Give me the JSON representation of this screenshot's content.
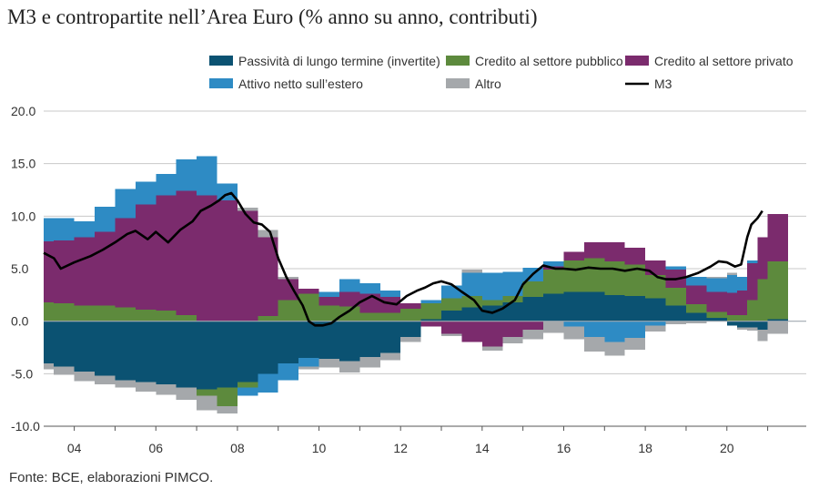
{
  "title": "M3 e contropartite nell’Area Euro (% anno su anno, contributi)",
  "source": "Fonte: BCE, elaborazioni PIMCO.",
  "chart_data": {
    "type": "area",
    "stacking": "stacked, positive and negative contributions stacked separately; M3 drawn as a line",
    "xlim": [
      2003.25,
      2021.5
    ],
    "ylim": [
      -10,
      20
    ],
    "yticks": [
      20,
      15,
      10,
      5,
      0,
      -5,
      -10
    ],
    "ytick_labels": [
      "20.0",
      "15.0",
      "10.0",
      "5.0",
      "0.0",
      "-5.0",
      "-10.0"
    ],
    "xticks": [
      2004,
      2006,
      2008,
      2010,
      2012,
      2014,
      2016,
      2018,
      2020
    ],
    "xtick_labels": [
      "04",
      "06",
      "08",
      "10",
      "12",
      "14",
      "16",
      "18",
      "20"
    ],
    "grid": "horizontal",
    "legend_position": "top-right",
    "x": [
      2003.25,
      2003.5,
      2004,
      2004.5,
      2005,
      2005.5,
      2006,
      2006.5,
      2007,
      2007.5,
      2008,
      2008.5,
      2009,
      2009.5,
      2010,
      2010.5,
      2011,
      2011.5,
      2012,
      2012.5,
      2013,
      2013.5,
      2014,
      2014.5,
      2015,
      2015.5,
      2016,
      2016.5,
      2017,
      2017.5,
      2018,
      2018.5,
      2019,
      2019.5,
      2020,
      2020.25,
      2020.5,
      2020.75,
      2021,
      2021.5
    ],
    "series": [
      {
        "name": "Passività di lungo termine (invertite)",
        "color": "#0b5272",
        "values": [
          -4.0,
          -4.3,
          -4.8,
          -5.2,
          -5.6,
          -5.8,
          -6.0,
          -6.3,
          -6.5,
          -6.3,
          -5.8,
          -5.0,
          -4.0,
          -3.5,
          -3.6,
          -3.8,
          -3.4,
          -3.0,
          -1.5,
          0.2,
          1.0,
          1.3,
          1.5,
          1.8,
          2.3,
          2.6,
          2.8,
          2.8,
          2.5,
          2.4,
          2.2,
          1.5,
          0.8,
          0.3,
          -0.4,
          -0.6,
          -0.6,
          -0.8,
          0.2,
          0.0
        ]
      },
      {
        "name": "Credito al settore pubblico",
        "color": "#5d8a3d",
        "values": [
          1.8,
          1.7,
          1.5,
          1.5,
          1.3,
          1.1,
          1.0,
          0.6,
          -0.6,
          -1.8,
          -0.5,
          0.5,
          2.0,
          2.6,
          1.5,
          1.4,
          0.8,
          0.8,
          1.2,
          1.5,
          1.2,
          1.1,
          0.5,
          0.6,
          1.5,
          2.3,
          3.0,
          3.2,
          3.2,
          3.0,
          2.2,
          1.7,
          0.8,
          0.6,
          0.6,
          0.6,
          2.0,
          4.0,
          5.5,
          0.0
        ]
      },
      {
        "name": "Credito al settore privato",
        "color": "#7b2b6d",
        "values": [
          5.8,
          6.0,
          6.5,
          7.0,
          8.5,
          10.0,
          11.0,
          11.8,
          12.0,
          11.5,
          10.5,
          7.5,
          2.0,
          0.5,
          0.8,
          1.4,
          1.8,
          1.5,
          0.5,
          -0.5,
          -1.2,
          -2.0,
          -2.4,
          -1.5,
          -0.8,
          0.3,
          0.8,
          1.5,
          1.8,
          1.6,
          1.4,
          1.7,
          1.8,
          1.9,
          2.1,
          2.3,
          3.5,
          4.0,
          4.5,
          0.0
        ]
      },
      {
        "name": "Attivo netto sull’estero",
        "color": "#2e8bc4",
        "values": [
          2.2,
          2.1,
          1.5,
          2.4,
          2.8,
          2.2,
          2.0,
          3.0,
          3.7,
          1.6,
          -0.8,
          -1.8,
          -1.6,
          -0.8,
          0.5,
          1.2,
          1.0,
          0.6,
          0.0,
          0.3,
          1.2,
          2.2,
          2.6,
          2.3,
          1.3,
          0.5,
          -0.5,
          -1.5,
          -2.0,
          -1.6,
          -0.4,
          0.3,
          0.8,
          1.3,
          1.7,
          1.3,
          0.3,
          0.0,
          0.0,
          0.0
        ]
      },
      {
        "name": "Altro",
        "color": "#a5a8ab",
        "values": [
          -0.6,
          -0.8,
          -0.9,
          -0.8,
          -0.7,
          -0.9,
          -1.0,
          -1.2,
          -1.4,
          -0.7,
          0.3,
          0.7,
          0.2,
          -0.3,
          -0.8,
          -1.1,
          -1.0,
          -0.7,
          -0.5,
          0.0,
          -0.2,
          0.3,
          -0.4,
          -0.6,
          -0.9,
          -1.1,
          -1.2,
          -1.4,
          -1.3,
          -1.1,
          -0.6,
          -0.3,
          -0.2,
          0.1,
          0.2,
          -0.2,
          -0.3,
          -1.1,
          -1.2,
          0.0
        ]
      }
    ],
    "line": {
      "name": "M3",
      "color": "#000000",
      "x": [
        2003.25,
        2003.5,
        2003.67,
        2004,
        2004.4,
        2004.7,
        2005,
        2005.3,
        2005.5,
        2005.8,
        2006,
        2006.3,
        2006.6,
        2006.9,
        2007.1,
        2007.35,
        2007.55,
        2007.7,
        2007.85,
        2008.0,
        2008.2,
        2008.4,
        2008.6,
        2008.8,
        2009.0,
        2009.2,
        2009.4,
        2009.6,
        2009.75,
        2009.9,
        2010.1,
        2010.3,
        2010.5,
        2010.75,
        2011.0,
        2011.3,
        2011.6,
        2011.9,
        2012.15,
        2012.4,
        2012.6,
        2012.8,
        2013.0,
        2013.25,
        2013.5,
        2013.8,
        2014.0,
        2014.25,
        2014.5,
        2014.8,
        2015.0,
        2015.25,
        2015.5,
        2015.8,
        2016.0,
        2016.3,
        2016.6,
        2016.9,
        2017.2,
        2017.5,
        2017.8,
        2018.1,
        2018.3,
        2018.5,
        2018.75,
        2019.0,
        2019.3,
        2019.6,
        2019.8,
        2020.0,
        2020.2,
        2020.35,
        2020.5,
        2020.6,
        2020.75,
        2020.87
      ],
      "values": [
        6.5,
        6.0,
        5.0,
        5.6,
        6.2,
        6.8,
        7.5,
        8.3,
        8.6,
        7.8,
        8.5,
        7.5,
        8.7,
        9.5,
        10.5,
        11.0,
        11.5,
        12.0,
        12.2,
        11.5,
        10.2,
        9.4,
        9.2,
        8.5,
        6.0,
        4.2,
        2.8,
        1.5,
        0.0,
        -0.4,
        -0.4,
        -0.2,
        0.4,
        1.0,
        1.8,
        2.4,
        1.8,
        1.6,
        2.4,
        2.9,
        3.2,
        3.6,
        3.8,
        3.5,
        2.8,
        2.0,
        1.0,
        0.8,
        1.2,
        2.0,
        3.5,
        4.5,
        5.3,
        5.0,
        5.0,
        4.9,
        5.1,
        5.0,
        5.0,
        4.8,
        5.0,
        4.8,
        4.2,
        4.0,
        4.0,
        4.2,
        4.6,
        5.2,
        5.7,
        5.6,
        5.2,
        5.4,
        8.0,
        9.2,
        9.8,
        10.5
      ]
    }
  }
}
